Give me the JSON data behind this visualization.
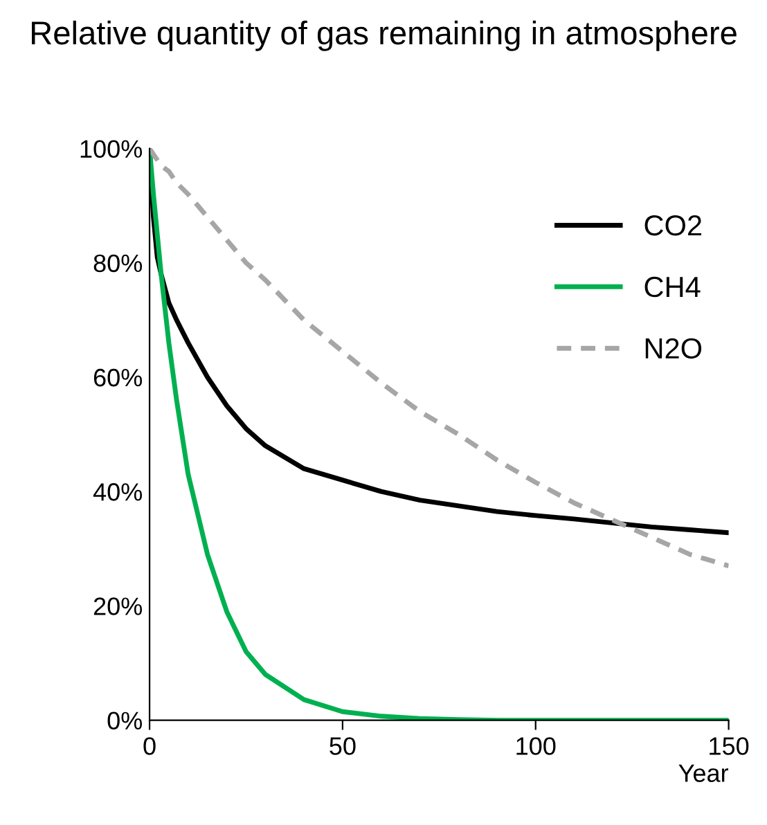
{
  "chart_data": {
    "type": "line",
    "title": "Relative quantity of gas remaining in atmosphere",
    "xlabel": "Year",
    "xlim": [
      0,
      150
    ],
    "xticks": [
      0,
      50,
      100,
      150
    ],
    "ylim": [
      0,
      1
    ],
    "yticks": [
      {
        "value": 0,
        "label": "0%"
      },
      {
        "value": 0.2,
        "label": "20%"
      },
      {
        "value": 0.4,
        "label": "40%"
      },
      {
        "value": 0.6,
        "label": "60%"
      },
      {
        "value": 0.8,
        "label": "80%"
      },
      {
        "value": 1,
        "label": "100%"
      }
    ],
    "x": [
      0,
      1,
      2,
      3,
      5,
      7,
      10,
      15,
      20,
      25,
      30,
      40,
      50,
      60,
      70,
      80,
      90,
      100,
      110,
      120,
      130,
      140,
      150
    ],
    "series": [
      {
        "name": "CO2",
        "color": "#000000",
        "line_style": "solid",
        "values": [
          1.0,
          0.88,
          0.81,
          0.78,
          0.73,
          0.7,
          0.66,
          0.6,
          0.55,
          0.51,
          0.48,
          0.44,
          0.42,
          0.4,
          0.385,
          0.375,
          0.365,
          0.358,
          0.352,
          0.345,
          0.338,
          0.333,
          0.328
        ]
      },
      {
        "name": "CH4",
        "color": "#00b050",
        "line_style": "solid",
        "values": [
          1.0,
          0.92,
          0.85,
          0.78,
          0.66,
          0.56,
          0.43,
          0.29,
          0.19,
          0.12,
          0.08,
          0.036,
          0.015,
          0.007,
          0.003,
          0.001,
          0,
          0,
          0,
          0,
          0,
          0,
          0
        ]
      },
      {
        "name": "N2O",
        "color": "#a6a6a6",
        "line_style": "dashed",
        "values": [
          1.0,
          0.99,
          0.98,
          0.97,
          0.96,
          0.94,
          0.92,
          0.88,
          0.84,
          0.8,
          0.77,
          0.7,
          0.645,
          0.59,
          0.54,
          0.5,
          0.455,
          0.416,
          0.38,
          0.35,
          0.32,
          0.29,
          0.27
        ]
      }
    ],
    "legend": "top right",
    "grid": false,
    "marker": "none"
  }
}
